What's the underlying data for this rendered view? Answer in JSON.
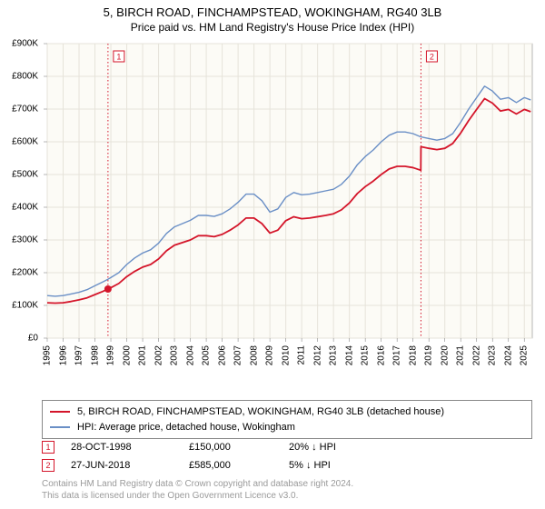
{
  "title": "5, BIRCH ROAD, FINCHAMPSTEAD, WOKINGHAM, RG40 3LB",
  "subtitle": "Price paid vs. HM Land Registry's House Price Index (HPI)",
  "chart": {
    "type": "line",
    "plot_bg": "#fcfbf6",
    "outer_bg": "#ffffff",
    "grid_color": "#e6e3da",
    "axis_color": "#888888",
    "x_min": 1995.0,
    "x_max": 2025.5,
    "y_min": 0,
    "y_max": 900,
    "y_ticks": [
      0,
      100,
      200,
      300,
      400,
      500,
      600,
      700,
      800,
      900
    ],
    "y_tick_prefix": "£",
    "y_tick_suffix": "K",
    "y_zero_label": "£0",
    "x_ticks": [
      1995,
      1996,
      1997,
      1998,
      1999,
      2000,
      2001,
      2002,
      2003,
      2004,
      2005,
      2006,
      2007,
      2008,
      2009,
      2010,
      2011,
      2012,
      2013,
      2014,
      2015,
      2016,
      2017,
      2018,
      2019,
      2020,
      2021,
      2022,
      2023,
      2024,
      2025
    ],
    "x_tick_fontsize": 10,
    "y_tick_fontsize": 10,
    "series": [
      {
        "id": "hpi",
        "color": "#6a8fc6",
        "width": 1.4,
        "data": [
          [
            1995.0,
            130
          ],
          [
            1995.5,
            128
          ],
          [
            1996.0,
            130
          ],
          [
            1996.5,
            135
          ],
          [
            1997.0,
            140
          ],
          [
            1997.5,
            148
          ],
          [
            1998.0,
            160
          ],
          [
            1998.5,
            172
          ],
          [
            1998.82,
            180
          ],
          [
            1999.0,
            185
          ],
          [
            1999.5,
            200
          ],
          [
            2000.0,
            225
          ],
          [
            2000.5,
            245
          ],
          [
            2001.0,
            260
          ],
          [
            2001.5,
            270
          ],
          [
            2002.0,
            290
          ],
          [
            2002.5,
            320
          ],
          [
            2003.0,
            340
          ],
          [
            2003.5,
            350
          ],
          [
            2004.0,
            360
          ],
          [
            2004.5,
            375
          ],
          [
            2005.0,
            375
          ],
          [
            2005.5,
            372
          ],
          [
            2006.0,
            380
          ],
          [
            2006.5,
            395
          ],
          [
            2007.0,
            415
          ],
          [
            2007.5,
            440
          ],
          [
            2008.0,
            440
          ],
          [
            2008.5,
            420
          ],
          [
            2009.0,
            385
          ],
          [
            2009.5,
            395
          ],
          [
            2010.0,
            430
          ],
          [
            2010.5,
            445
          ],
          [
            2011.0,
            438
          ],
          [
            2011.5,
            440
          ],
          [
            2012.0,
            445
          ],
          [
            2012.5,
            450
          ],
          [
            2013.0,
            455
          ],
          [
            2013.5,
            470
          ],
          [
            2014.0,
            495
          ],
          [
            2014.5,
            530
          ],
          [
            2015.0,
            555
          ],
          [
            2015.5,
            575
          ],
          [
            2016.0,
            600
          ],
          [
            2016.5,
            620
          ],
          [
            2017.0,
            630
          ],
          [
            2017.5,
            630
          ],
          [
            2018.0,
            625
          ],
          [
            2018.49,
            615
          ],
          [
            2018.5,
            615
          ],
          [
            2019.0,
            610
          ],
          [
            2019.5,
            605
          ],
          [
            2020.0,
            610
          ],
          [
            2020.5,
            625
          ],
          [
            2021.0,
            660
          ],
          [
            2021.5,
            700
          ],
          [
            2022.0,
            735
          ],
          [
            2022.5,
            770
          ],
          [
            2023.0,
            755
          ],
          [
            2023.5,
            730
          ],
          [
            2024.0,
            735
          ],
          [
            2024.5,
            720
          ],
          [
            2025.0,
            735
          ],
          [
            2025.4,
            728
          ]
        ]
      },
      {
        "id": "paid",
        "color": "#d4152a",
        "width": 1.8,
        "data": [
          [
            1995.0,
            108
          ],
          [
            1995.5,
            107
          ],
          [
            1996.0,
            108
          ],
          [
            1996.5,
            112
          ],
          [
            1997.0,
            117
          ],
          [
            1997.5,
            123
          ],
          [
            1998.0,
            133
          ],
          [
            1998.5,
            143
          ],
          [
            1998.82,
            150
          ],
          [
            1999.0,
            154
          ],
          [
            1999.5,
            167
          ],
          [
            2000.0,
            188
          ],
          [
            2000.5,
            204
          ],
          [
            2001.0,
            217
          ],
          [
            2001.5,
            225
          ],
          [
            2002.0,
            242
          ],
          [
            2002.5,
            267
          ],
          [
            2003.0,
            284
          ],
          [
            2003.5,
            292
          ],
          [
            2004.0,
            300
          ],
          [
            2004.5,
            313
          ],
          [
            2005.0,
            313
          ],
          [
            2005.5,
            310
          ],
          [
            2006.0,
            317
          ],
          [
            2006.5,
            330
          ],
          [
            2007.0,
            346
          ],
          [
            2007.5,
            367
          ],
          [
            2008.0,
            367
          ],
          [
            2008.5,
            350
          ],
          [
            2009.0,
            321
          ],
          [
            2009.5,
            330
          ],
          [
            2010.0,
            359
          ],
          [
            2010.5,
            371
          ],
          [
            2011.0,
            365
          ],
          [
            2011.5,
            367
          ],
          [
            2012.0,
            371
          ],
          [
            2012.5,
            375
          ],
          [
            2013.0,
            380
          ],
          [
            2013.5,
            392
          ],
          [
            2014.0,
            413
          ],
          [
            2014.5,
            442
          ],
          [
            2015.0,
            463
          ],
          [
            2015.5,
            480
          ],
          [
            2016.0,
            500
          ],
          [
            2016.5,
            517
          ],
          [
            2017.0,
            525
          ],
          [
            2017.5,
            525
          ],
          [
            2018.0,
            521
          ],
          [
            2018.49,
            513
          ],
          [
            2018.5,
            585
          ],
          [
            2019.0,
            580
          ],
          [
            2019.5,
            576
          ],
          [
            2020.0,
            580
          ],
          [
            2020.5,
            595
          ],
          [
            2021.0,
            627
          ],
          [
            2021.5,
            665
          ],
          [
            2022.0,
            699
          ],
          [
            2022.5,
            732
          ],
          [
            2023.0,
            718
          ],
          [
            2023.5,
            694
          ],
          [
            2024.0,
            699
          ],
          [
            2024.5,
            685
          ],
          [
            2025.0,
            699
          ],
          [
            2025.4,
            692
          ]
        ]
      }
    ],
    "markers": [
      {
        "n": 1,
        "x": 1998.82,
        "y": 150,
        "color": "#d4152a",
        "has_dot": true,
        "line_style": "dotted"
      },
      {
        "n": 2,
        "x": 2018.5,
        "y": 585,
        "color": "#d4152a",
        "has_dot": false,
        "line_style": "dotted"
      }
    ]
  },
  "legend": {
    "items": [
      {
        "label": "5, BIRCH ROAD, FINCHAMPSTEAD, WOKINGHAM, RG40 3LB (detached house)",
        "color": "#d4152a"
      },
      {
        "label": "HPI: Average price, detached house, Wokingham",
        "color": "#6a8fc6"
      }
    ]
  },
  "events": [
    {
      "n": 1,
      "date": "28-OCT-1998",
      "price": "£150,000",
      "hpi_rel": "20% ↓ HPI",
      "color": "#d4152a"
    },
    {
      "n": 2,
      "date": "27-JUN-2018",
      "price": "£585,000",
      "hpi_rel": "5% ↓ HPI",
      "color": "#d4152a"
    }
  ],
  "footer": {
    "line1": "Contains HM Land Registry data © Crown copyright and database right 2024.",
    "line2": "This data is licensed under the Open Government Licence v3.0."
  }
}
